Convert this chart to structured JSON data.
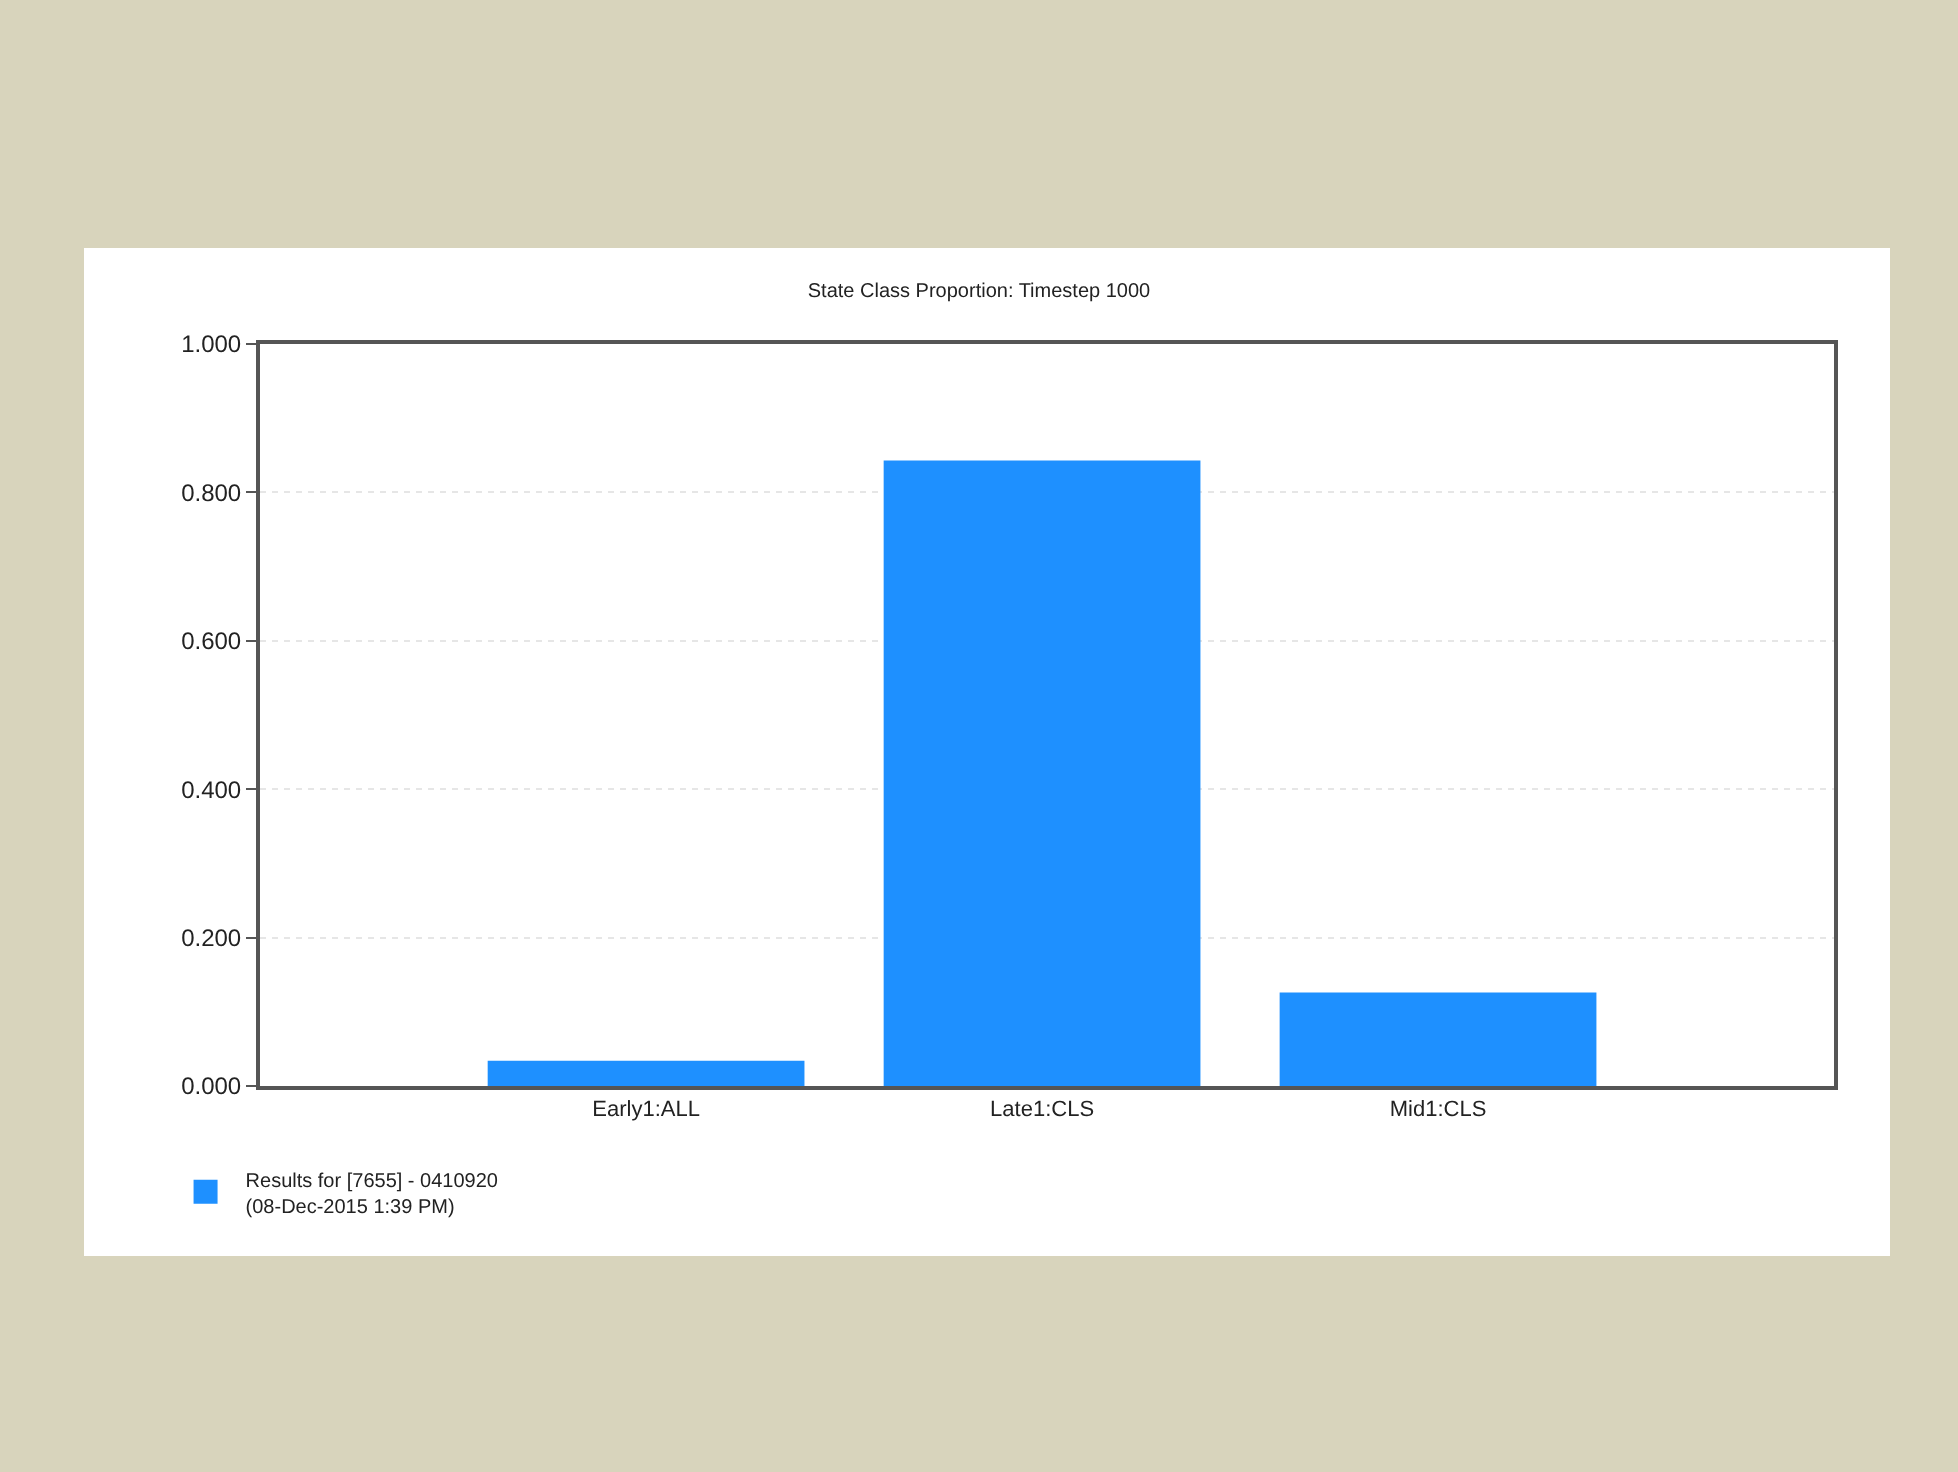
{
  "chart_data": {
    "type": "bar",
    "title": "State Class Proportion: Timestep 1000",
    "categories": [
      "Early1:ALL",
      "Late1:CLS",
      "Mid1:CLS"
    ],
    "series": [
      {
        "name": "Results for [7655] - 0410920\n(08-Dec-2015 1:39 PM)",
        "color": "#1e90ff",
        "values": [
          0.034,
          0.843,
          0.126
        ]
      }
    ],
    "ylim": [
      0,
      1
    ],
    "yticks": [
      {
        "value": 0,
        "label": "0.000"
      },
      {
        "value": 0.2,
        "label": "0.200"
      },
      {
        "value": 0.4,
        "label": "0.400"
      },
      {
        "value": 0.6,
        "label": "0.600"
      },
      {
        "value": 0.8,
        "label": "0.800"
      },
      {
        "value": 1,
        "label": "1.000"
      }
    ],
    "grid": "y",
    "legend": "bottom left"
  }
}
